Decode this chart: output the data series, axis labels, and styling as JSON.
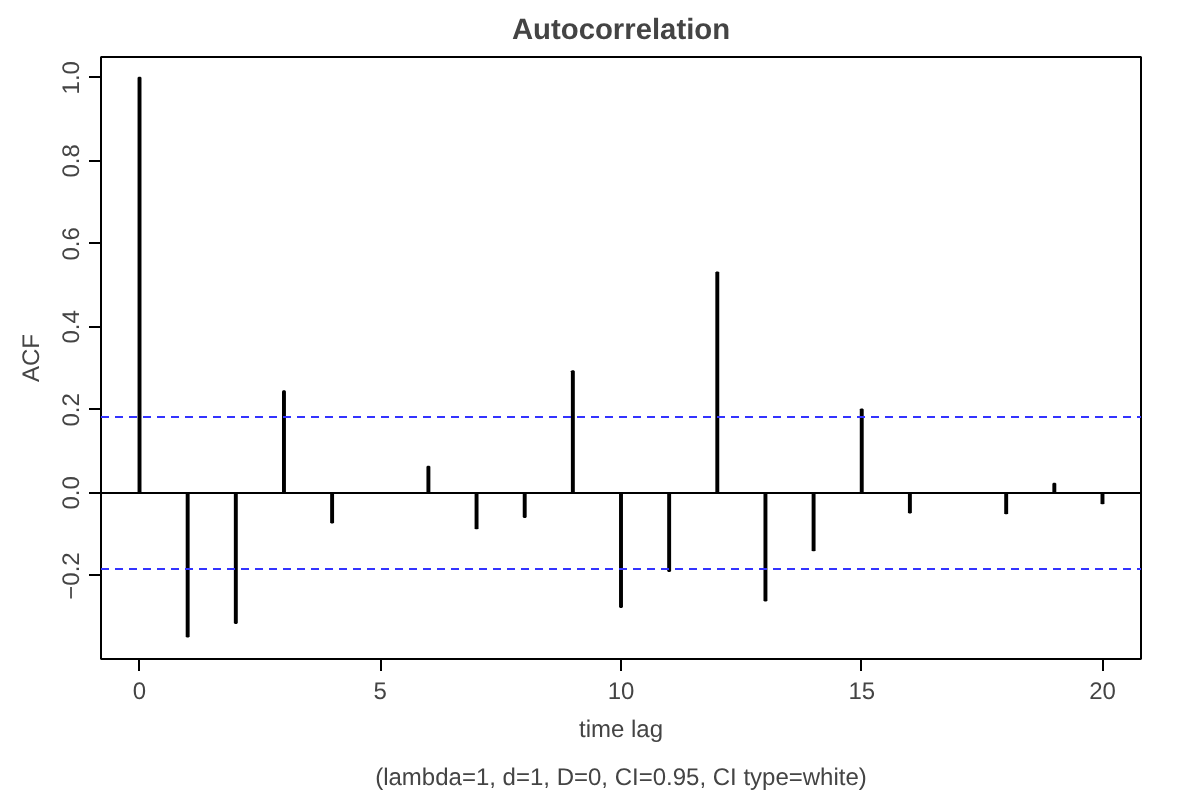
{
  "chart_data": {
    "type": "bar",
    "title": "Autocorrelation",
    "xlabel": "time lag",
    "ylabel": "ACF",
    "annotations": [
      "(lambda=1, d=1, D=0, CI=0.95, CI type=white)"
    ],
    "x": [
      0,
      1,
      2,
      3,
      4,
      5,
      6,
      7,
      8,
      9,
      10,
      11,
      12,
      13,
      14,
      15,
      16,
      17,
      18,
      19,
      20
    ],
    "values": [
      1.0,
      -0.346,
      -0.313,
      0.245,
      -0.071,
      null,
      0.063,
      -0.085,
      -0.058,
      0.293,
      -0.275,
      -0.188,
      0.531,
      -0.259,
      -0.138,
      0.201,
      -0.047,
      null,
      -0.049,
      0.022,
      -0.025
    ],
    "color": "#000000",
    "xlim": [
      -0.8,
      20.8
    ],
    "ylim": [
      -0.4,
      1.05
    ],
    "xticks": [
      0,
      5,
      10,
      15,
      20
    ],
    "yticks": [
      {
        "value": -0.2,
        "label": "−0.2"
      },
      {
        "value": 0,
        "label": "0.0"
      },
      {
        "value": 0.2,
        "label": "0.2"
      },
      {
        "value": 0.4,
        "label": "0.4"
      },
      {
        "value": 0.6,
        "label": "0.6"
      },
      {
        "value": 0.8,
        "label": "0.8"
      },
      {
        "value": 1.0,
        "label": "1.0"
      }
    ],
    "ref_lines": [
      {
        "axis": "y",
        "value": 0,
        "color": "#000000",
        "line_style": "solid"
      },
      {
        "axis": "y",
        "value": 0.183,
        "color": "#3333ff",
        "line_style": "dashed"
      },
      {
        "axis": "y",
        "value": -0.183,
        "color": "#3333ff",
        "line_style": "dashed"
      }
    ],
    "grid": false
  }
}
